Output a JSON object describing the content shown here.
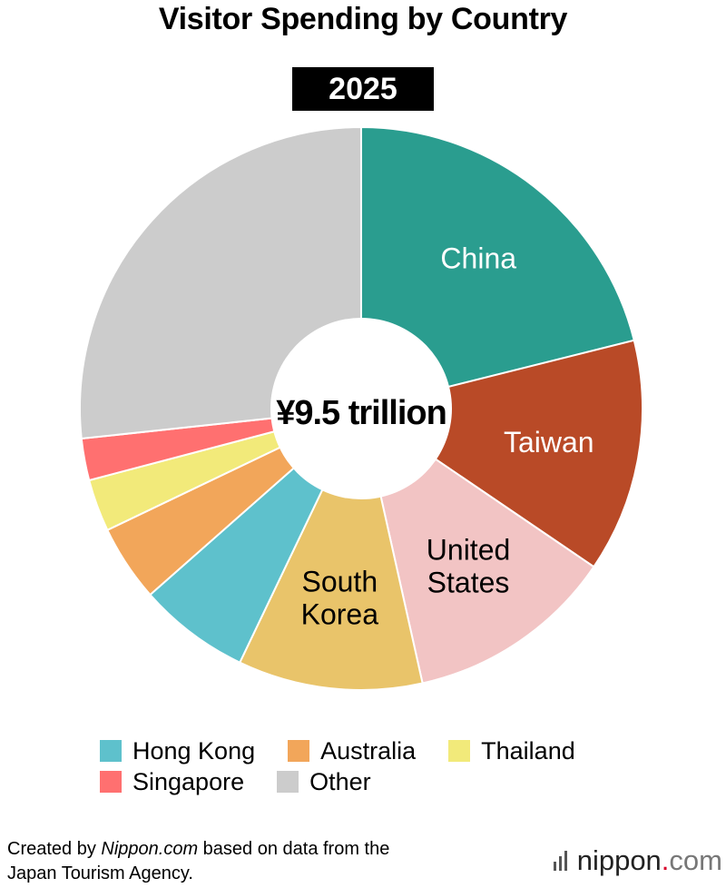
{
  "title": "Visitor Spending by Country",
  "year": "2025",
  "center_label": "¥9.5 trillion",
  "chart_data": {
    "type": "pie",
    "style": "donut",
    "title": "Visitor Spending by Country",
    "subtitle": "2025",
    "total_label": "¥9.5 trillion",
    "unit": "share of total (%)",
    "slices": [
      {
        "name": "China",
        "value": 21.1,
        "color": "#2a9d8f",
        "label_lines": [
          "China"
        ],
        "label_color": "#ffffff"
      },
      {
        "name": "Taiwan",
        "value": 13.4,
        "color": "#b94a27",
        "label_lines": [
          "Taiwan"
        ],
        "label_color": "#ffffff"
      },
      {
        "name": "United States",
        "value": 12.0,
        "color": "#f2c4c4",
        "label_lines": [
          "United",
          "States"
        ],
        "label_color": "#000000"
      },
      {
        "name": "South Korea",
        "value": 10.6,
        "color": "#e9c46a",
        "label_lines": [
          "South",
          "Korea"
        ],
        "label_color": "#000000"
      },
      {
        "name": "Hong Kong",
        "value": 6.4,
        "color": "#5ec1cc",
        "label_lines": [],
        "label_color": "#000000"
      },
      {
        "name": "Australia",
        "value": 4.4,
        "color": "#f2a65a",
        "label_lines": [],
        "label_color": "#000000"
      },
      {
        "name": "Thailand",
        "value": 3.0,
        "color": "#f2ea7a",
        "label_lines": [],
        "label_color": "#000000"
      },
      {
        "name": "Singapore",
        "value": 2.4,
        "color": "#ff7070",
        "label_lines": [],
        "label_color": "#000000"
      },
      {
        "name": "Other",
        "value": 26.7,
        "color": "#cccccc",
        "label_lines": [],
        "label_color": "#000000"
      }
    ],
    "legend": [
      "Hong Kong",
      "Australia",
      "Thailand",
      "Singapore",
      "Other"
    ],
    "legend_position": "bottom"
  },
  "legend_rows": [
    [
      {
        "label": "Hong Kong",
        "color": "#5ec1cc"
      },
      {
        "label": "Australia",
        "color": "#f2a65a"
      },
      {
        "label": "Thailand",
        "color": "#f2ea7a"
      }
    ],
    [
      {
        "label": "Singapore",
        "color": "#ff7070"
      },
      {
        "label": "Other",
        "color": "#cccccc"
      }
    ]
  ],
  "footer": {
    "prefix": "Created by ",
    "source_site": "Nippon.com",
    "suffix": " based on data from the",
    "line2": "Japan Tourism Agency."
  },
  "brand": {
    "name": "nippon",
    "dot": ".",
    "tld": "com"
  }
}
